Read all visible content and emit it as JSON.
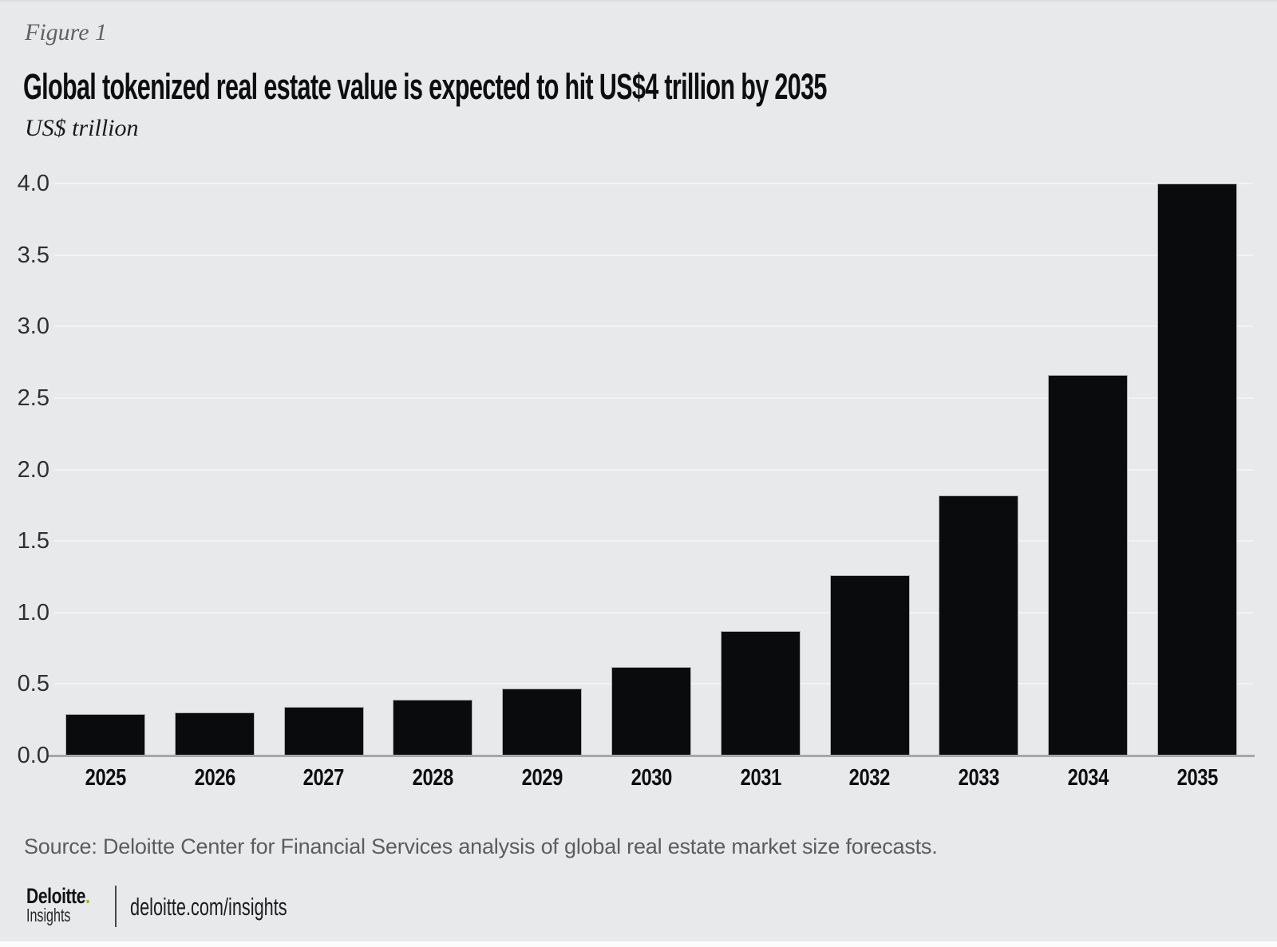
{
  "figure": {
    "label": "Figure 1",
    "title": "Global tokenized real estate value is expected to hit US$4 trillion by 2035",
    "unit": "US$ trillion"
  },
  "chart_data": {
    "type": "bar",
    "categories": [
      "2025",
      "2026",
      "2027",
      "2028",
      "2029",
      "2030",
      "2031",
      "2032",
      "2033",
      "2034",
      "2035"
    ],
    "values": [
      0.29,
      0.3,
      0.34,
      0.39,
      0.47,
      0.62,
      0.87,
      1.26,
      1.82,
      2.66,
      4.0
    ],
    "title": "Global tokenized real estate value is expected to hit US$4 trillion by 2035",
    "xlabel": "",
    "ylabel": "US$ trillion",
    "ylim": [
      0,
      4.0
    ],
    "ytick_step": 0.5,
    "ytick_labels": [
      "0.0",
      "0.5",
      "1.0",
      "1.5",
      "2.0",
      "2.5",
      "3.0",
      "3.5",
      "4.0"
    ],
    "grid": true,
    "legend": "none",
    "bar_color": "#0a0b0c"
  },
  "footer": {
    "source": "Source: Deloitte Center for Financial Services analysis of global real estate market size forecasts.",
    "logo": {
      "brand": "Deloitte",
      "dot": ".",
      "sub": "Insights",
      "dot_color": "#86bc25"
    },
    "link": "deloitte.com/insights"
  },
  "colors": {
    "background": "#e8e9ea",
    "bar": "#0a0b0c",
    "gridline": "#f2f3f4",
    "axis_line": "#a6a7a9",
    "accent_green": "#86bc25",
    "muted_text": "#5a5d60"
  }
}
